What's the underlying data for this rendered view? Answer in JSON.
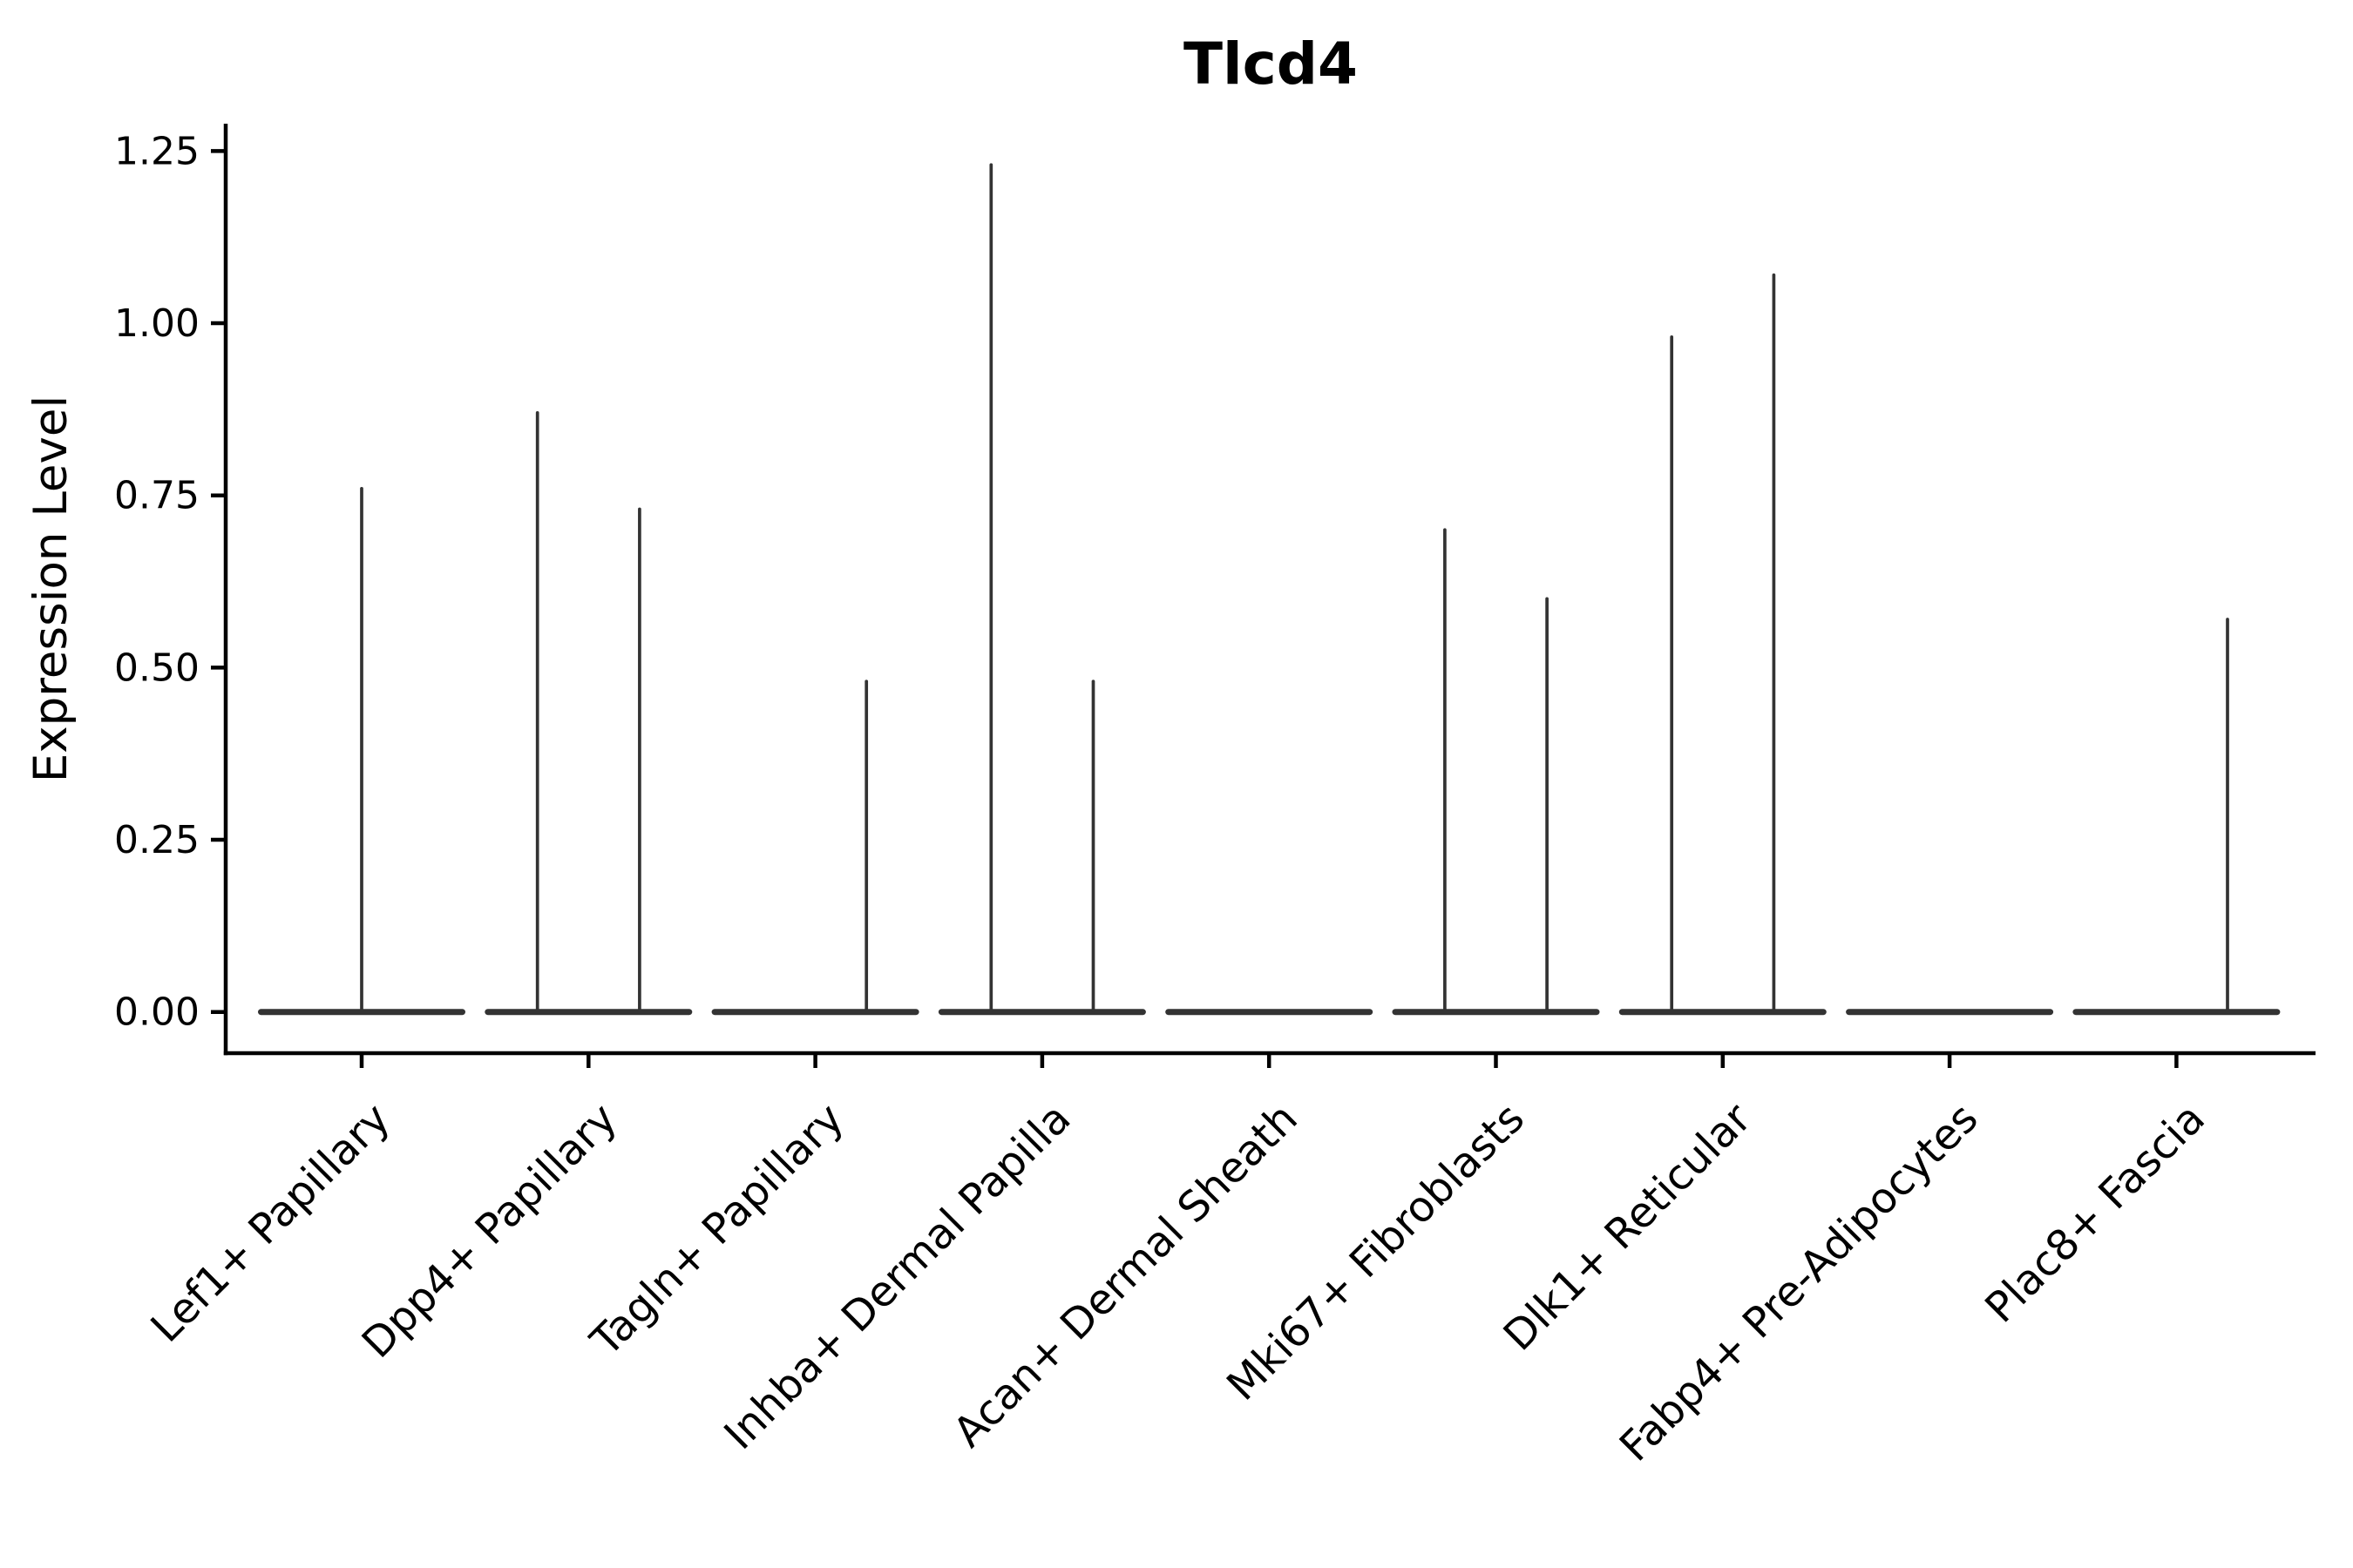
{
  "figure": {
    "background": "#ffffff"
  },
  "chart_data": {
    "type": "violin",
    "title": "Tlcd4",
    "xlabel": "",
    "ylabel": "Expression Level",
    "ylim": [
      -0.06,
      1.29
    ],
    "yticks": [
      0,
      0.25,
      0.5,
      0.75,
      1.0,
      1.25
    ],
    "ytick_labels": [
      "0.00",
      "0.25",
      "0.50",
      "0.75",
      "1.00",
      "1.25"
    ],
    "grid": false,
    "legend": null,
    "categories": [
      "Lef1+ Papillary",
      "Dpp4+ Papillary",
      "Tagln+ Papillary",
      "Inhba+ Dermal Papilla",
      "Acan+ Dermal Sheath",
      "Mki67+ Fibroblasts",
      "Dlk1+ Reticular",
      "Fabp4+ Pre-Adipocytes",
      "Plac8+ Fascia"
    ],
    "violins": [
      {
        "category": "Lef1+ Papillary",
        "baseline_value": 0,
        "spikes": [
          {
            "position": "center",
            "max_value": 0.76
          }
        ]
      },
      {
        "category": "Dpp4+ Papillary",
        "baseline_value": 0,
        "spikes": [
          {
            "position": "left",
            "max_value": 0.87
          },
          {
            "position": "right",
            "max_value": 0.73
          }
        ]
      },
      {
        "category": "Tagln+ Papillary",
        "baseline_value": 0,
        "spikes": [
          {
            "position": "right",
            "max_value": 0.48
          }
        ]
      },
      {
        "category": "Inhba+ Dermal Papilla",
        "baseline_value": 0,
        "spikes": [
          {
            "position": "left",
            "max_value": 1.23
          },
          {
            "position": "right",
            "max_value": 0.48
          }
        ]
      },
      {
        "category": "Acan+ Dermal Sheath",
        "baseline_value": 0,
        "spikes": []
      },
      {
        "category": "Mki67+ Fibroblasts",
        "baseline_value": 0,
        "spikes": [
          {
            "position": "left",
            "max_value": 0.7
          },
          {
            "position": "right",
            "max_value": 0.6
          }
        ]
      },
      {
        "category": "Dlk1+ Reticular",
        "baseline_value": 0,
        "spikes": [
          {
            "position": "left",
            "max_value": 0.98
          },
          {
            "position": "right",
            "max_value": 1.07
          }
        ]
      },
      {
        "category": "Fabp4+ Pre-Adipocytes",
        "baseline_value": 0,
        "spikes": []
      },
      {
        "category": "Plac8+ Fascia",
        "baseline_value": 0,
        "spikes": [
          {
            "position": "right",
            "max_value": 0.57
          }
        ]
      }
    ],
    "colors": {
      "ink": "#000000",
      "violin": "#333333",
      "background": "#ffffff"
    }
  }
}
